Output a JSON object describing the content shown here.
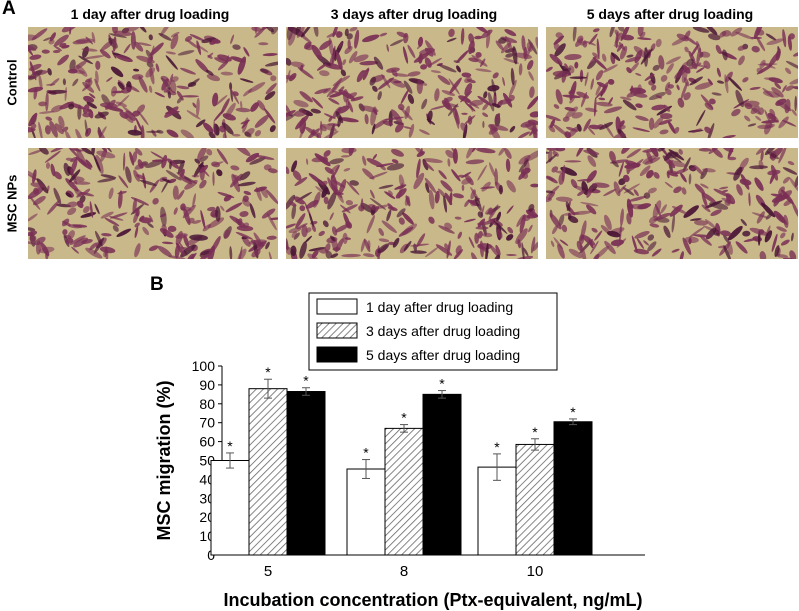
{
  "figure": {
    "panel_a_letter": "A",
    "panel_b_letter": "B",
    "columns": [
      "1 day after drug loading",
      "3 days after drug loading",
      "5 days after drug loading"
    ],
    "rows": [
      "Control",
      "MSC NPs"
    ],
    "micrograph_colors": {
      "background": "#c9b98a",
      "cells": "#7a2f55",
      "cells_dark": "#4a1636"
    }
  },
  "chart_data": {
    "type": "bar",
    "ylabel": "MSC migration (%)",
    "xlabel": "Incubation concentration (Ptx-equivalent, ng/mL)",
    "ylim": [
      0,
      100
    ],
    "yticks": [
      0,
      10,
      20,
      30,
      40,
      50,
      60,
      70,
      80,
      90,
      100
    ],
    "categories": [
      "5",
      "8",
      "10"
    ],
    "legend_position": "top-center",
    "significance_marker": "*",
    "series": [
      {
        "name": "1 day after drug loading",
        "values": [
          50,
          45.5,
          46.5
        ],
        "errors": [
          4,
          5,
          7
        ],
        "fill": "white"
      },
      {
        "name": "3 days after drug loading",
        "values": [
          88,
          67,
          58.5
        ],
        "errors": [
          5,
          2,
          3
        ],
        "fill": "hatch"
      },
      {
        "name": "5 days after drug loading",
        "values": [
          86.5,
          85,
          70.5
        ],
        "errors": [
          2,
          2,
          1.5
        ],
        "fill": "black"
      }
    ]
  }
}
